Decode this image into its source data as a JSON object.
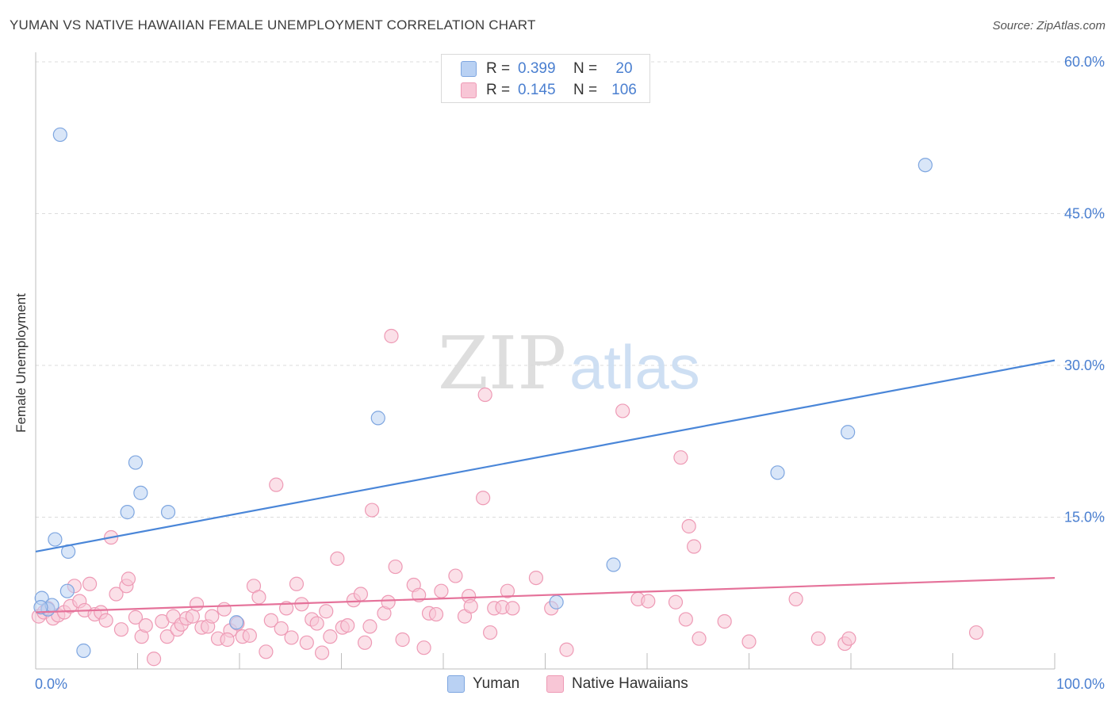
{
  "title": "YUMAN VS NATIVE HAWAIIAN FEMALE UNEMPLOYMENT CORRELATION CHART",
  "source": "Source: ZipAtlas.com",
  "watermark": {
    "zip": "ZIP",
    "atlas": "atlas"
  },
  "legend": [
    {
      "r_label": "R =",
      "r_value": "0.399",
      "n_label": "N =",
      "n_value": "20",
      "fill": "#b9d1f3",
      "stroke": "#7ea6e0"
    },
    {
      "r_label": "R =",
      "r_value": "0.145",
      "n_label": "N =",
      "n_value": "106",
      "fill": "#f8c6d6",
      "stroke": "#ee9ab5"
    }
  ],
  "chart_data": {
    "type": "scatter",
    "title": "YUMAN VS NATIVE HAWAIIAN FEMALE UNEMPLOYMENT CORRELATION CHART",
    "xlabel": "",
    "ylabel": "Female Unemployment",
    "xlim": [
      0,
      100
    ],
    "ylim": [
      0,
      60
    ],
    "x_tick_labels": [
      "0.0%",
      "100.0%"
    ],
    "y_ticks": [
      15,
      30,
      45,
      60
    ],
    "y_tick_labels": [
      "15.0%",
      "30.0%",
      "45.0%",
      "60.0%"
    ],
    "grid": true,
    "legend_position": "bottom",
    "series": [
      {
        "name": "Yuman",
        "color": "#4a86d8",
        "marker_fill": "#b9d1f3",
        "marker_stroke": "#7ea6e0",
        "trend": {
          "x": [
            0,
            100
          ],
          "y": [
            11.6,
            30.5
          ]
        },
        "points": [
          {
            "x": 0.6,
            "y": 7.0
          },
          {
            "x": 1.2,
            "y": 5.9
          },
          {
            "x": 1.6,
            "y": 6.3
          },
          {
            "x": 1.9,
            "y": 12.8
          },
          {
            "x": 2.4,
            "y": 52.8
          },
          {
            "x": 3.1,
            "y": 7.7
          },
          {
            "x": 3.2,
            "y": 11.6
          },
          {
            "x": 4.7,
            "y": 1.8
          },
          {
            "x": 9.0,
            "y": 15.5
          },
          {
            "x": 9.8,
            "y": 20.4
          },
          {
            "x": 10.3,
            "y": 17.4
          },
          {
            "x": 13.0,
            "y": 15.5
          },
          {
            "x": 19.7,
            "y": 4.6
          },
          {
            "x": 33.6,
            "y": 24.8
          },
          {
            "x": 51.1,
            "y": 6.6
          },
          {
            "x": 56.7,
            "y": 10.3
          },
          {
            "x": 72.8,
            "y": 19.4
          },
          {
            "x": 79.7,
            "y": 23.4
          },
          {
            "x": 87.3,
            "y": 49.8
          },
          {
            "x": 0.5,
            "y": 6.1
          }
        ]
      },
      {
        "name": "Native Hawaiians",
        "color": "#e5729a",
        "marker_fill": "#f8c6d6",
        "marker_stroke": "#ee9ab5",
        "trend": {
          "x": [
            0,
            100
          ],
          "y": [
            5.6,
            9.0
          ]
        },
        "points": [
          {
            "x": 0.3,
            "y": 5.2
          },
          {
            "x": 0.8,
            "y": 5.6
          },
          {
            "x": 1.2,
            "y": 6.0
          },
          {
            "x": 1.7,
            "y": 5.0
          },
          {
            "x": 2.2,
            "y": 5.3
          },
          {
            "x": 2.8,
            "y": 5.6
          },
          {
            "x": 3.4,
            "y": 6.2
          },
          {
            "x": 3.8,
            "y": 8.2
          },
          {
            "x": 4.3,
            "y": 6.7
          },
          {
            "x": 4.8,
            "y": 5.8
          },
          {
            "x": 5.3,
            "y": 8.4
          },
          {
            "x": 5.8,
            "y": 5.4
          },
          {
            "x": 6.4,
            "y": 5.6
          },
          {
            "x": 6.9,
            "y": 4.8
          },
          {
            "x": 7.4,
            "y": 13.0
          },
          {
            "x": 7.9,
            "y": 7.4
          },
          {
            "x": 8.4,
            "y": 3.9
          },
          {
            "x": 8.9,
            "y": 8.2
          },
          {
            "x": 9.1,
            "y": 8.9
          },
          {
            "x": 9.8,
            "y": 5.1
          },
          {
            "x": 10.4,
            "y": 3.2
          },
          {
            "x": 10.8,
            "y": 4.3
          },
          {
            "x": 11.6,
            "y": 1.0
          },
          {
            "x": 12.4,
            "y": 4.7
          },
          {
            "x": 12.9,
            "y": 3.2
          },
          {
            "x": 13.5,
            "y": 5.2
          },
          {
            "x": 13.9,
            "y": 3.9
          },
          {
            "x": 14.3,
            "y": 4.4
          },
          {
            "x": 14.8,
            "y": 5.0
          },
          {
            "x": 15.4,
            "y": 5.2
          },
          {
            "x": 15.8,
            "y": 6.4
          },
          {
            "x": 16.3,
            "y": 4.1
          },
          {
            "x": 16.9,
            "y": 4.2
          },
          {
            "x": 17.3,
            "y": 5.2
          },
          {
            "x": 17.9,
            "y": 3.0
          },
          {
            "x": 18.5,
            "y": 5.9
          },
          {
            "x": 19.1,
            "y": 3.8
          },
          {
            "x": 19.8,
            "y": 4.5
          },
          {
            "x": 20.3,
            "y": 3.2
          },
          {
            "x": 21.0,
            "y": 3.3
          },
          {
            "x": 21.4,
            "y": 8.2
          },
          {
            "x": 21.9,
            "y": 7.1
          },
          {
            "x": 22.6,
            "y": 1.7
          },
          {
            "x": 23.1,
            "y": 4.8
          },
          {
            "x": 23.6,
            "y": 18.2
          },
          {
            "x": 24.1,
            "y": 4.0
          },
          {
            "x": 24.6,
            "y": 6.0
          },
          {
            "x": 25.1,
            "y": 3.1
          },
          {
            "x": 25.6,
            "y": 8.4
          },
          {
            "x": 26.1,
            "y": 6.4
          },
          {
            "x": 26.6,
            "y": 2.6
          },
          {
            "x": 27.1,
            "y": 4.9
          },
          {
            "x": 27.6,
            "y": 4.5
          },
          {
            "x": 28.1,
            "y": 1.6
          },
          {
            "x": 28.5,
            "y": 5.7
          },
          {
            "x": 28.9,
            "y": 3.2
          },
          {
            "x": 29.6,
            "y": 10.9
          },
          {
            "x": 30.1,
            "y": 4.1
          },
          {
            "x": 30.6,
            "y": 4.3
          },
          {
            "x": 31.2,
            "y": 6.8
          },
          {
            "x": 31.9,
            "y": 7.4
          },
          {
            "x": 32.3,
            "y": 2.6
          },
          {
            "x": 32.8,
            "y": 4.2
          },
          {
            "x": 33.0,
            "y": 15.7
          },
          {
            "x": 34.2,
            "y": 5.5
          },
          {
            "x": 34.6,
            "y": 6.6
          },
          {
            "x": 34.9,
            "y": 32.9
          },
          {
            "x": 35.3,
            "y": 10.1
          },
          {
            "x": 36.0,
            "y": 2.9
          },
          {
            "x": 37.1,
            "y": 8.3
          },
          {
            "x": 37.6,
            "y": 7.3
          },
          {
            "x": 38.1,
            "y": 2.1
          },
          {
            "x": 38.6,
            "y": 5.5
          },
          {
            "x": 39.3,
            "y": 5.4
          },
          {
            "x": 39.8,
            "y": 7.7
          },
          {
            "x": 41.2,
            "y": 9.2
          },
          {
            "x": 42.1,
            "y": 5.2
          },
          {
            "x": 42.5,
            "y": 7.2
          },
          {
            "x": 42.7,
            "y": 6.2
          },
          {
            "x": 44.1,
            "y": 27.1
          },
          {
            "x": 44.6,
            "y": 3.6
          },
          {
            "x": 45.0,
            "y": 6.0
          },
          {
            "x": 45.8,
            "y": 6.1
          },
          {
            "x": 46.3,
            "y": 7.7
          },
          {
            "x": 46.8,
            "y": 6.0
          },
          {
            "x": 49.1,
            "y": 9.0
          },
          {
            "x": 50.6,
            "y": 6.0
          },
          {
            "x": 52.1,
            "y": 1.9
          },
          {
            "x": 57.6,
            "y": 25.5
          },
          {
            "x": 59.1,
            "y": 6.9
          },
          {
            "x": 60.1,
            "y": 6.7
          },
          {
            "x": 62.8,
            "y": 6.6
          },
          {
            "x": 63.3,
            "y": 20.9
          },
          {
            "x": 63.8,
            "y": 4.9
          },
          {
            "x": 64.1,
            "y": 14.1
          },
          {
            "x": 64.6,
            "y": 12.1
          },
          {
            "x": 65.1,
            "y": 3.0
          },
          {
            "x": 67.6,
            "y": 4.7
          },
          {
            "x": 70.0,
            "y": 2.7
          },
          {
            "x": 74.6,
            "y": 6.9
          },
          {
            "x": 76.8,
            "y": 3.0
          },
          {
            "x": 79.4,
            "y": 2.5
          },
          {
            "x": 79.8,
            "y": 3.0
          },
          {
            "x": 92.3,
            "y": 3.6
          },
          {
            "x": 43.9,
            "y": 16.9
          },
          {
            "x": 18.8,
            "y": 2.9
          }
        ]
      }
    ]
  }
}
